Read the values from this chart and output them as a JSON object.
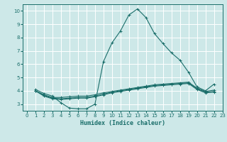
{
  "xlabel": "Humidex (Indice chaleur)",
  "bg_color": "#cde8e8",
  "grid_color": "#b8d8d8",
  "line_color": "#1a6e6a",
  "xlim": [
    -0.5,
    23
  ],
  "ylim": [
    2.5,
    10.5
  ],
  "yticks": [
    3,
    4,
    5,
    6,
    7,
    8,
    9,
    10
  ],
  "xticks": [
    0,
    1,
    2,
    3,
    4,
    5,
    6,
    7,
    8,
    9,
    10,
    11,
    12,
    13,
    14,
    15,
    16,
    17,
    18,
    19,
    20,
    21,
    22,
    23
  ],
  "line1_x": [
    1,
    2,
    3,
    4,
    5,
    6,
    7,
    8,
    9,
    10,
    11,
    12,
    13,
    14,
    15,
    16,
    17,
    18,
    19,
    20,
    21,
    22
  ],
  "line1_y": [
    4.1,
    3.8,
    3.6,
    3.1,
    2.7,
    2.65,
    2.65,
    3.0,
    6.2,
    7.6,
    8.5,
    9.7,
    10.15,
    9.5,
    8.3,
    7.55,
    6.85,
    6.3,
    5.4,
    4.3,
    4.0,
    4.5
  ],
  "line2_x": [
    1,
    2,
    3,
    4,
    5,
    6,
    7,
    8,
    9,
    10,
    11,
    12,
    13,
    14,
    15,
    16,
    17,
    18,
    19,
    20,
    21,
    22
  ],
  "line2_y": [
    4.0,
    3.7,
    3.5,
    3.5,
    3.55,
    3.6,
    3.6,
    3.7,
    3.85,
    3.95,
    4.05,
    4.15,
    4.25,
    4.35,
    4.45,
    4.5,
    4.55,
    4.6,
    4.65,
    4.2,
    3.95,
    4.05
  ],
  "line3_x": [
    1,
    2,
    3,
    4,
    5,
    6,
    7,
    8,
    9,
    10,
    11,
    12,
    13,
    14,
    15,
    16,
    17,
    18,
    19,
    20,
    21,
    22
  ],
  "line3_y": [
    4.0,
    3.65,
    3.45,
    3.4,
    3.45,
    3.5,
    3.5,
    3.6,
    3.75,
    3.9,
    4.0,
    4.1,
    4.2,
    4.3,
    4.4,
    4.45,
    4.5,
    4.55,
    4.6,
    4.15,
    3.9,
    3.95
  ],
  "line4_x": [
    1,
    2,
    3,
    4,
    5,
    6,
    7,
    8,
    9,
    10,
    11,
    12,
    13,
    14,
    15,
    16,
    17,
    18,
    19,
    20,
    21,
    22
  ],
  "line4_y": [
    4.0,
    3.6,
    3.4,
    3.35,
    3.4,
    3.45,
    3.45,
    3.55,
    3.7,
    3.85,
    3.95,
    4.05,
    4.15,
    4.25,
    4.35,
    4.4,
    4.45,
    4.5,
    4.55,
    4.1,
    3.85,
    3.9
  ]
}
